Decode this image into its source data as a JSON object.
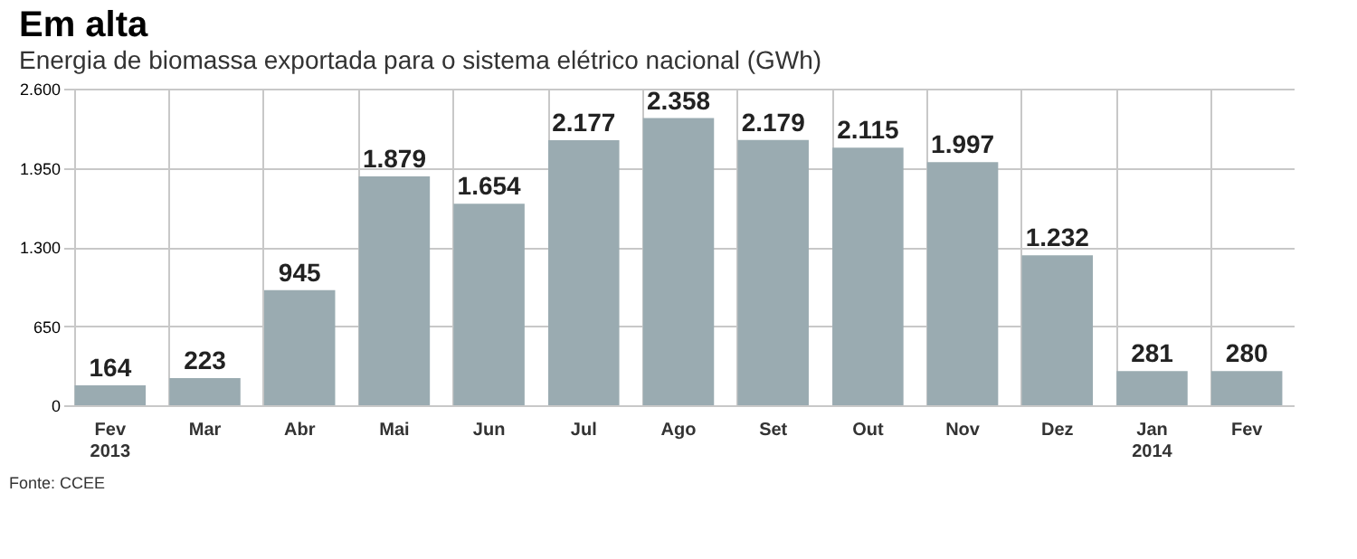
{
  "chart_data": {
    "type": "bar",
    "title": "Em alta",
    "subtitle": "Energia de biomassa exportada para o sistema elétrico nacional (GWh)",
    "categories": [
      "Fev\n2013",
      "Mar",
      "Abr",
      "Mai",
      "Jun",
      "Jul",
      "Ago",
      "Set",
      "Out",
      "Nov",
      "Dez",
      "Jan\n2014",
      "Fev"
    ],
    "values": [
      164,
      223,
      945,
      1879,
      1654,
      2177,
      2358,
      2179,
      2115,
      1997,
      1232,
      281,
      280
    ],
    "color": "#9aabb1",
    "ylim": [
      0,
      2600
    ],
    "yticks": [
      0,
      650,
      {
        "value": 1300,
        "label": "1.300"
      },
      {
        "value": 1950,
        "label": "1.950"
      },
      {
        "value": 2600,
        "label": "2.600"
      }
    ],
    "value_labels": [
      "164",
      "223",
      "945",
      "1.879",
      "1.654",
      "2.177",
      "2.358",
      "2.179",
      "2.115",
      "1.997",
      "1.232",
      "281",
      "280"
    ],
    "grid": true,
    "annotations": [
      "Fonte: CCEE"
    ]
  }
}
